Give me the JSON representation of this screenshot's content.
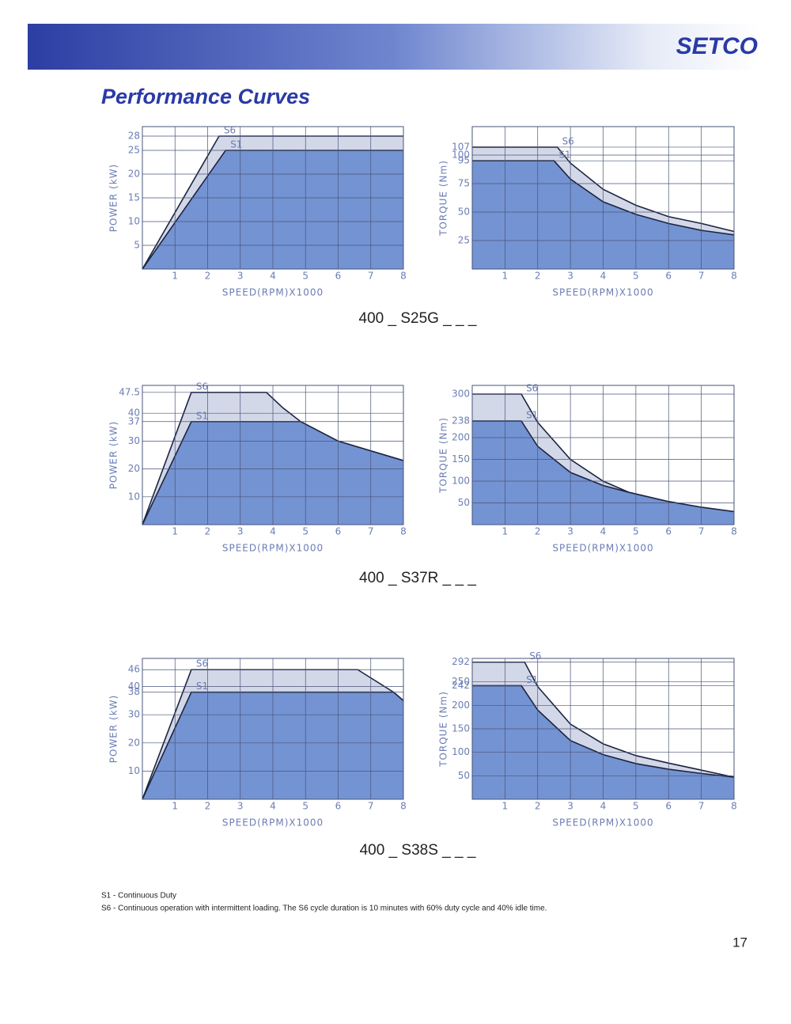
{
  "header": {
    "brand": "SETCO",
    "title": "Performance Curves"
  },
  "chart_data": [
    {
      "type": "area",
      "xlabel": "SPEED(RPM)X1000",
      "ylabel": "POWER (kW)",
      "xlim": [
        0,
        8
      ],
      "xticks": [
        1,
        2,
        3,
        4,
        5,
        6,
        7,
        8
      ],
      "ylim": [
        0,
        30
      ],
      "yticks": [
        5,
        10,
        15,
        20,
        25,
        28
      ],
      "grid": true,
      "series": [
        {
          "name": "S6",
          "color": "#d3d8e8",
          "x": [
            0,
            2.35,
            8
          ],
          "values": [
            0,
            28,
            28
          ]
        },
        {
          "name": "S1",
          "color": "#7493d2",
          "x": [
            0,
            2.55,
            8
          ],
          "values": [
            0,
            25,
            25
          ]
        }
      ]
    },
    {
      "type": "area",
      "xlabel": "SPEED(RPM)X1000",
      "ylabel": "TORQUE (Nm)",
      "xlim": [
        0,
        8
      ],
      "xticks": [
        1,
        2,
        3,
        4,
        5,
        6,
        7,
        8
      ],
      "ylim": [
        0,
        125
      ],
      "yticks": [
        25,
        50,
        75,
        95,
        100,
        107
      ],
      "grid": true,
      "series": [
        {
          "name": "S6",
          "color": "#d3d8e8",
          "x": [
            0,
            2.6,
            3,
            4,
            5,
            6,
            7,
            8
          ],
          "values": [
            107,
            107,
            93,
            70,
            56,
            46,
            40,
            33
          ]
        },
        {
          "name": "S1",
          "color": "#7493d2",
          "x": [
            0,
            2.5,
            3,
            4,
            5,
            6,
            7,
            8
          ],
          "values": [
            95,
            95,
            79,
            59,
            48,
            40,
            34,
            30
          ]
        }
      ]
    },
    {
      "type": "area",
      "xlabel": "SPEED(RPM)X1000",
      "ylabel": "POWER (kW)",
      "xlim": [
        0,
        8
      ],
      "xticks": [
        1,
        2,
        3,
        4,
        5,
        6,
        7,
        8
      ],
      "ylim": [
        0,
        50
      ],
      "yticks": [
        10,
        20,
        30,
        37,
        40,
        47.5
      ],
      "grid": true,
      "series": [
        {
          "name": "S6",
          "color": "#d3d8e8",
          "x": [
            0,
            1.5,
            3.8,
            4.3,
            4.85,
            6,
            7,
            8
          ],
          "values": [
            0,
            47.5,
            47.5,
            42,
            37,
            30,
            26.5,
            23
          ]
        },
        {
          "name": "S1",
          "color": "#7493d2",
          "x": [
            0,
            1.5,
            4.85,
            6,
            7,
            8
          ],
          "values": [
            0,
            37,
            37,
            30,
            26.5,
            23
          ]
        }
      ]
    },
    {
      "type": "area",
      "xlabel": "SPEED(RPM)X1000",
      "ylabel": "TORQUE (Nm)",
      "xlim": [
        0,
        8
      ],
      "xticks": [
        1,
        2,
        3,
        4,
        5,
        6,
        7,
        8
      ],
      "ylim": [
        0,
        320
      ],
      "yticks": [
        50,
        100,
        150,
        200,
        238,
        300
      ],
      "grid": true,
      "series": [
        {
          "name": "S6",
          "color": "#d3d8e8",
          "x": [
            0,
            1.5,
            2,
            3,
            4,
            4.8,
            6,
            7,
            8
          ],
          "values": [
            300,
            300,
            235,
            150,
            100,
            74,
            53,
            40,
            30
          ]
        },
        {
          "name": "S1",
          "color": "#7493d2",
          "x": [
            0,
            1.5,
            2,
            3,
            4,
            4.8,
            6,
            7,
            8
          ],
          "values": [
            238,
            238,
            180,
            120,
            90,
            74,
            53,
            40,
            30
          ]
        }
      ]
    },
    {
      "type": "area",
      "xlabel": "SPEED(RPM)X1000",
      "ylabel": "POWER (kW)",
      "xlim": [
        0,
        8
      ],
      "xticks": [
        1,
        2,
        3,
        4,
        5,
        6,
        7,
        8
      ],
      "ylim": [
        0,
        50
      ],
      "yticks": [
        10,
        20,
        30,
        38,
        40,
        46
      ],
      "grid": true,
      "series": [
        {
          "name": "S6",
          "color": "#d3d8e8",
          "x": [
            0,
            1.5,
            6.6,
            7.7,
            8
          ],
          "values": [
            0,
            46,
            46,
            38,
            35
          ]
        },
        {
          "name": "S1",
          "color": "#7493d2",
          "x": [
            0,
            1.5,
            7.7,
            8
          ],
          "values": [
            0,
            38,
            38,
            35
          ]
        }
      ]
    },
    {
      "type": "area",
      "xlabel": "SPEED(RPM)X1000",
      "ylabel": "TORQUE (Nm)",
      "xlim": [
        0,
        8
      ],
      "xticks": [
        1,
        2,
        3,
        4,
        5,
        6,
        7,
        8
      ],
      "ylim": [
        0,
        300
      ],
      "yticks": [
        50,
        100,
        150,
        200,
        242,
        250,
        292
      ],
      "grid": true,
      "series": [
        {
          "name": "S6",
          "color": "#d3d8e8",
          "x": [
            0,
            1.6,
            2,
            3,
            4,
            5,
            6,
            7,
            8
          ],
          "values": [
            292,
            292,
            240,
            160,
            118,
            93,
            77,
            62,
            47
          ]
        },
        {
          "name": "S1",
          "color": "#7493d2",
          "x": [
            0,
            1.5,
            2,
            3,
            4,
            5,
            6,
            7,
            8
          ],
          "values": [
            242,
            242,
            190,
            125,
            95,
            76,
            64,
            55,
            47
          ]
        }
      ]
    }
  ],
  "captions": [
    "400 _ S25G _ _ _",
    "400 _ S37R _ _ _",
    "400 _ S38S _ _ _"
  ],
  "notes": [
    "S1 - Continuous Duty",
    "S6 - Continuous operation with intermittent loading. The S6 cycle duration is 10 minutes with 60% duty cycle and 40% idle time."
  ],
  "page_number": "17"
}
